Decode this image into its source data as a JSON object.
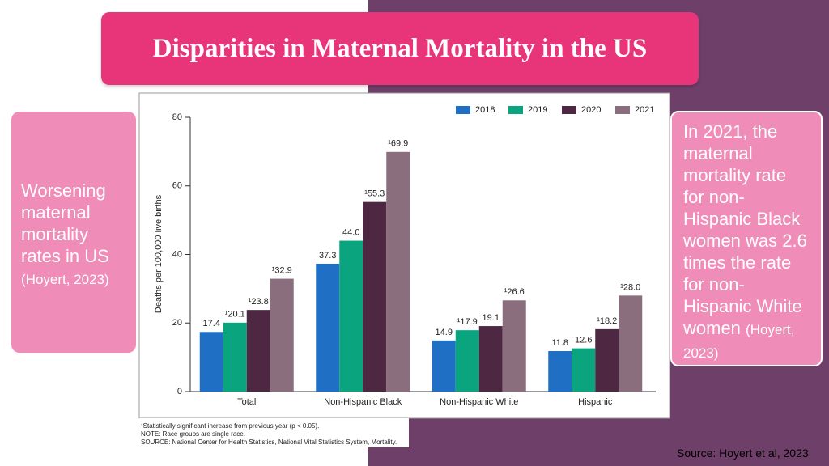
{
  "slide": {
    "title": "Disparities in Maternal Mortality in the US",
    "left_box": {
      "text": "Worsening maternal mortality rates in US",
      "citation": "(Hoyert, 2023)"
    },
    "right_box": {
      "text": "In 2021, the maternal mortality rate for non-Hispanic Black women was 2.6 times the rate for non-Hispanic White women",
      "citation": "(Hoyert, 2023)"
    },
    "source": "Source: Hoyert et al, 2023"
  },
  "chart_data": {
    "type": "bar",
    "y_label": "Deaths per 100,000 live births",
    "categories": [
      "Total",
      "Non-Hispanic Black",
      "Non-Hispanic White",
      "Hispanic"
    ],
    "series": [
      {
        "name": "2018",
        "color": "#1f6fc4",
        "values": [
          17.4,
          37.3,
          14.9,
          11.8
        ],
        "value_labels": [
          "17.4",
          "37.3",
          "14.9",
          "11.8"
        ]
      },
      {
        "name": "2019",
        "color": "#0aa57f",
        "values": [
          20.1,
          44.0,
          17.9,
          12.6
        ],
        "value_labels": [
          "¹20.1",
          "44.0",
          "¹17.9",
          "12.6"
        ]
      },
      {
        "name": "2020",
        "color": "#4e2742",
        "values": [
          23.8,
          55.3,
          19.1,
          18.2
        ],
        "value_labels": [
          "¹23.8",
          "¹55.3",
          "19.1",
          "¹18.2"
        ]
      },
      {
        "name": "2021",
        "color": "#8a6e7e",
        "values": [
          32.9,
          69.9,
          26.6,
          28.0
        ],
        "value_labels": [
          "¹32.9",
          "¹69.9",
          "¹26.6",
          "¹28.0"
        ]
      }
    ],
    "ylim": [
      0,
      80
    ],
    "yticks": [
      0,
      20,
      40,
      60,
      80
    ],
    "grid": false,
    "legend": "top-right",
    "footnotes": [
      "¹Statistically significant increase from previous year (p < 0.05).",
      "NOTE: Race groups are single race.",
      "SOURCE: National Center for Health Statistics, National Vital Statistics System, Mortality."
    ]
  }
}
